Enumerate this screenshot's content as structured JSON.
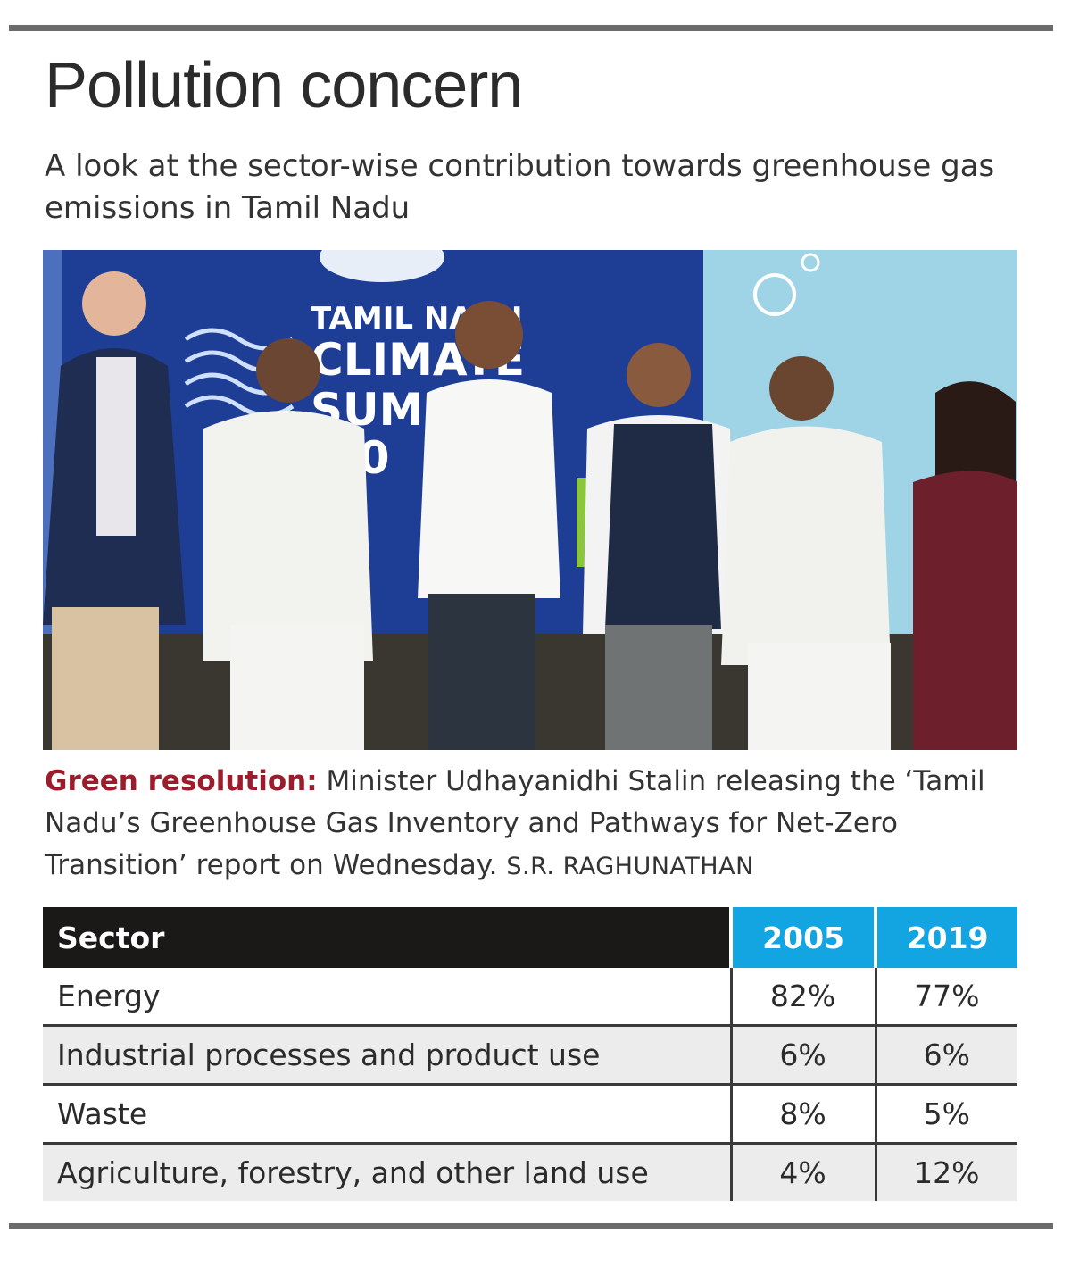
{
  "header": {
    "title": "Pollution concern",
    "subtitle": "A look at the sector-wise contribution towards greenhouse gas emissions in Tamil Nadu"
  },
  "photo": {
    "backdrop_text_line1": "TAMIL NADU",
    "backdrop_text_line2": "CLIMATE",
    "backdrop_text_line3": "SUMMIT",
    "backdrop_text_line4": "3.0"
  },
  "caption": {
    "lead": "Green resolution:",
    "text": "Minister Udhayanidhi Stalin releasing the ‘Tamil Nadu’s Greenhouse Gas Inventory and Pathways for Net-Zero Transition’  report on Wednesday.",
    "credit": "S.R. RAGHUNATHAN"
  },
  "table": {
    "headers": [
      "Sector",
      "2005",
      "2019"
    ],
    "rows": [
      {
        "sector": "Energy",
        "y2005": "82%",
        "y2019": "77%"
      },
      {
        "sector": "Industrial processes and product use",
        "y2005": "6%",
        "y2019": "6%"
      },
      {
        "sector": "Waste",
        "y2005": "8%",
        "y2019": "5%"
      },
      {
        "sector": "Agriculture, forestry, and other land use",
        "y2005": "4%",
        "y2019": "12%"
      }
    ]
  },
  "colors": {
    "accent_blue": "#13a4e2",
    "header_dark": "#1b1818",
    "lead_red": "#9b1c2a"
  }
}
